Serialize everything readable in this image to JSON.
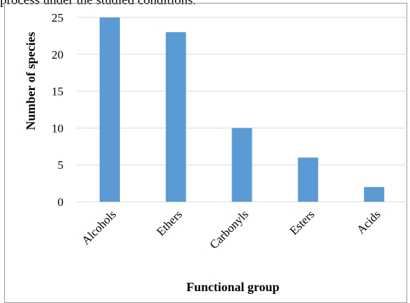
{
  "caption_fragment": "process under the studied conditions.",
  "chart_data": {
    "type": "bar",
    "categories": [
      "Alcohols",
      "Ethers",
      "Carbonyls",
      "Esters",
      "Acids"
    ],
    "values": [
      25,
      23,
      10,
      6,
      2
    ],
    "xlabel": "Functional group",
    "ylabel": "Number of species",
    "ylim": [
      0,
      25
    ],
    "yticks": [
      0,
      5,
      10,
      15,
      20,
      25
    ],
    "grid": "horizontal",
    "legend": "none",
    "bar_color": "#5b9bd5",
    "grid_color": "#d9d9d9"
  }
}
